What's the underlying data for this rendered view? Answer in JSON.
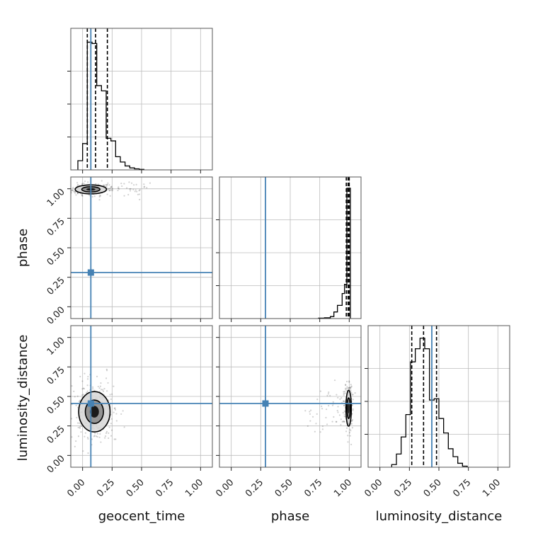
{
  "chart_data": {
    "type": "corner",
    "parameters": [
      "geocent_time",
      "phase",
      "luminosity_distance"
    ],
    "axis_range": [
      -0.1,
      1.1
    ],
    "tick_values": [
      0.0,
      0.25,
      0.5,
      0.75,
      1.0
    ],
    "tick_labels": [
      "0.00",
      "0.25",
      "0.50",
      "0.75",
      "1.00"
    ],
    "grid": true,
    "truth": {
      "geocent_time": 0.07,
      "phase": 0.29,
      "luminosity_distance": 0.44
    },
    "truth_color": "#4682b4",
    "histograms": [
      {
        "parameter": "geocent_time",
        "bin_edges": [
          -0.04,
          0.0,
          0.04,
          0.08,
          0.12,
          0.16,
          0.2,
          0.24,
          0.28,
          0.32,
          0.36,
          0.4,
          0.44,
          0.48,
          0.52
        ],
        "counts": [
          0.07,
          0.2,
          0.97,
          0.96,
          0.64,
          0.6,
          0.24,
          0.22,
          0.1,
          0.06,
          0.03,
          0.015,
          0.008,
          0.004
        ],
        "quantiles": [
          0.04,
          0.11,
          0.21
        ]
      },
      {
        "parameter": "phase",
        "bin_edges": [
          0.74,
          0.79,
          0.84,
          0.87,
          0.9,
          0.94,
          0.96,
          0.98,
          1.01
        ],
        "counts": [
          0.003,
          0.006,
          0.015,
          0.05,
          0.1,
          0.19,
          0.26,
          0.99
        ],
        "quantiles": [
          0.975,
          0.99,
          1.0
        ]
      },
      {
        "parameter": "luminosity_distance",
        "bin_edges": [
          0.1,
          0.14,
          0.18,
          0.22,
          0.26,
          0.3,
          0.34,
          0.38,
          0.42,
          0.46,
          0.5,
          0.54,
          0.58,
          0.62,
          0.66,
          0.7,
          0.74
        ],
        "counts": [
          0.02,
          0.1,
          0.23,
          0.4,
          0.8,
          0.9,
          0.98,
          0.9,
          0.51,
          0.52,
          0.37,
          0.26,
          0.14,
          0.08,
          0.03,
          0.008
        ],
        "quantiles": [
          0.27,
          0.37,
          0.48
        ]
      }
    ],
    "densities": [
      {
        "x": "geocent_time",
        "y": "phase",
        "center": [
          0.07,
          0.995
        ],
        "spread": [
          0.07,
          0.02
        ],
        "tail": {
          "axis": "x",
          "to": 0.6
        },
        "points": 260
      },
      {
        "x": "geocent_time",
        "y": "luminosity_distance",
        "center": [
          0.1,
          0.37
        ],
        "spread": [
          0.07,
          0.09
        ],
        "points": 360
      },
      {
        "x": "phase",
        "y": "luminosity_distance",
        "center": [
          0.995,
          0.4
        ],
        "spread": [
          0.012,
          0.08
        ],
        "tail": {
          "axis": "x",
          "to": 0.6
        },
        "points": 260
      }
    ]
  }
}
